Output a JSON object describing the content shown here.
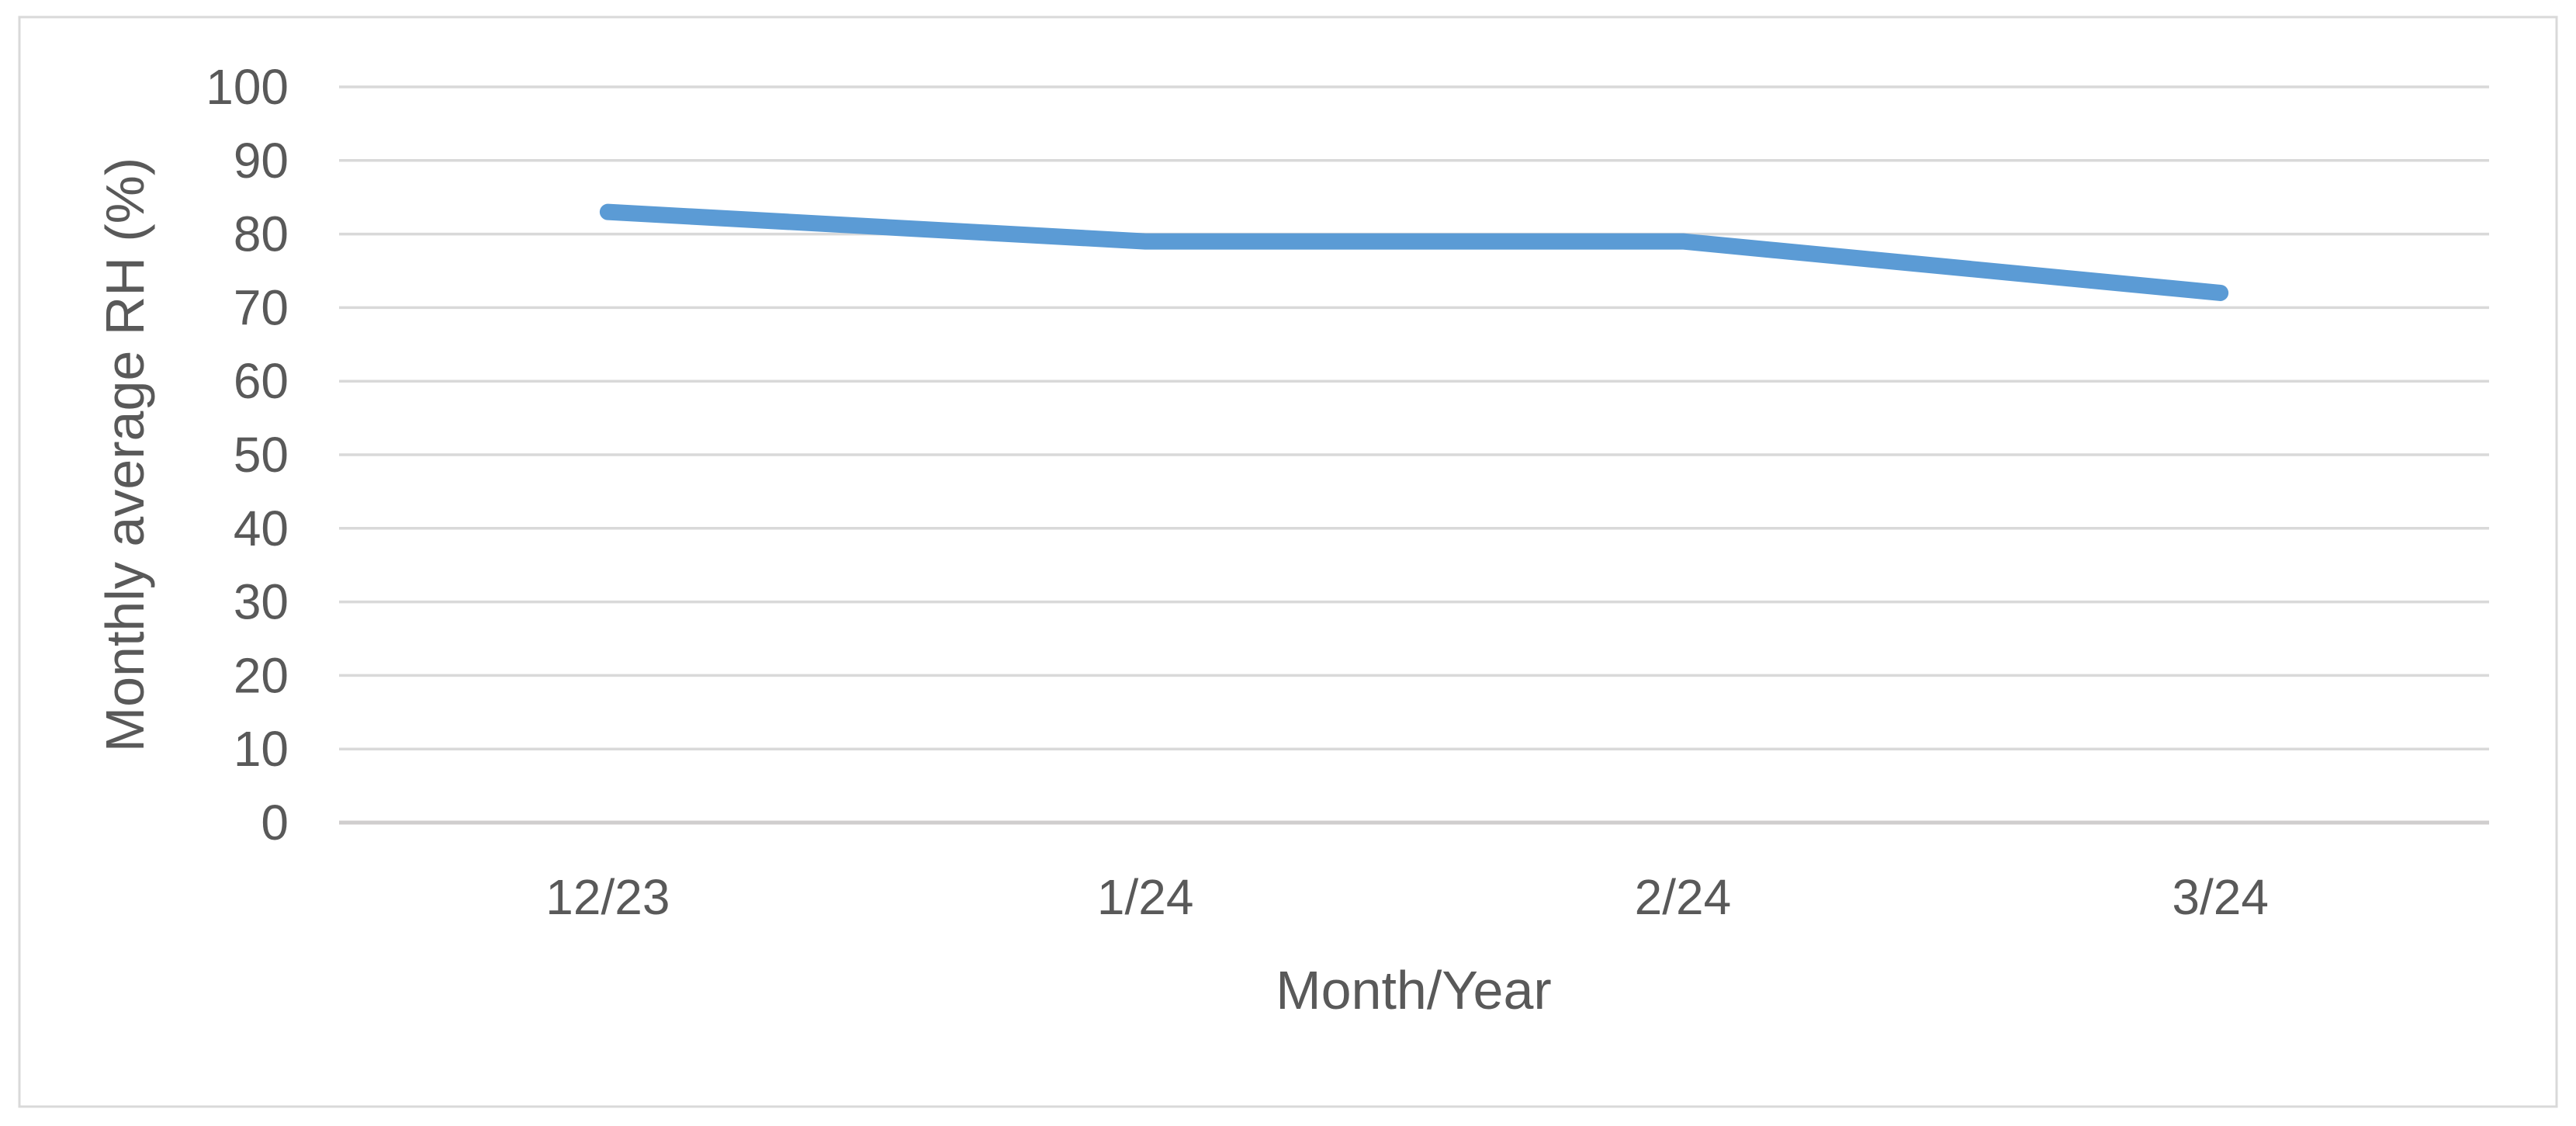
{
  "chart_data": {
    "type": "line",
    "categories": [
      "12/23",
      "1/24",
      "2/24",
      "3/24"
    ],
    "values": [
      83,
      79,
      79,
      72
    ],
    "series": [
      {
        "name": "Monthly average RH",
        "values": [
          83,
          79,
          79,
          72
        ]
      }
    ],
    "title": "",
    "xlabel": "Month/Year",
    "ylabel": "Monthly average RH (%)",
    "ylim": [
      0,
      100
    ],
    "yticks": [
      0,
      10,
      20,
      30,
      40,
      50,
      60,
      70,
      80,
      90,
      100
    ],
    "grid": true,
    "legend_position": "none",
    "colors": {
      "series_line": "#5B9BD5",
      "gridline": "#D9D9D9",
      "axis_line": "#D0CECE",
      "tick_text": "#595959",
      "axis_title_text": "#595959",
      "chart_border": "#D9D9D9",
      "background": "#FFFFFF"
    }
  }
}
